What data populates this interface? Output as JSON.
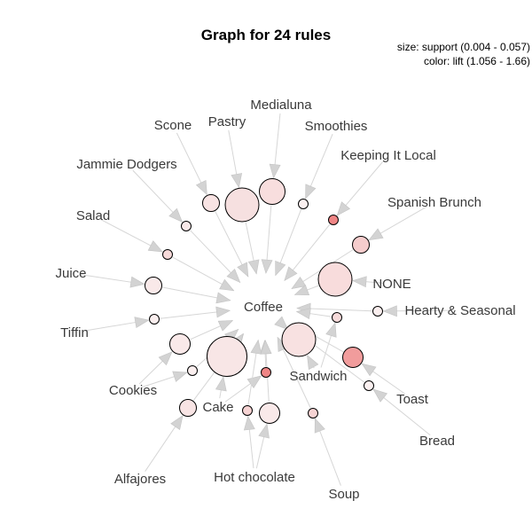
{
  "title": "Graph for 24 rules",
  "legend": {
    "size": "size: support (0.004 - 0.057)",
    "color": "color: lift (1.056 - 1.66)"
  },
  "items": [
    {
      "id": "medialuna",
      "label": "Medialuna"
    },
    {
      "id": "pastry",
      "label": "Pastry"
    },
    {
      "id": "scone",
      "label": "Scone"
    },
    {
      "id": "smoothies",
      "label": "Smoothies"
    },
    {
      "id": "keeping",
      "label": "Keeping It Local"
    },
    {
      "id": "jammie",
      "label": "Jammie Dodgers"
    },
    {
      "id": "spanish",
      "label": "Spanish Brunch"
    },
    {
      "id": "salad",
      "label": "Salad"
    },
    {
      "id": "juice",
      "label": "Juice"
    },
    {
      "id": "none",
      "label": "NONE"
    },
    {
      "id": "coffee",
      "label": "Coffee"
    },
    {
      "id": "hearty",
      "label": "Hearty & Seasonal"
    },
    {
      "id": "tiffin",
      "label": "Tiffin"
    },
    {
      "id": "cookies",
      "label": "Cookies"
    },
    {
      "id": "sandwich",
      "label": "Sandwich"
    },
    {
      "id": "toast",
      "label": "Toast"
    },
    {
      "id": "cake",
      "label": "Cake"
    },
    {
      "id": "bread",
      "label": "Bread"
    },
    {
      "id": "alfajores",
      "label": "Alfajores"
    },
    {
      "id": "hotchoc",
      "label": "Hot chocolate"
    },
    {
      "id": "soup",
      "label": "Soup"
    }
  ],
  "rules": [
    {
      "from": "medialuna",
      "size": "large",
      "fill": "#f8dede"
    },
    {
      "from": "pastry",
      "size": "xlarge",
      "fill": "#f6e0e0"
    },
    {
      "from": "scone",
      "size": "small",
      "fill": "#f8e3e3"
    },
    {
      "from": "smoothies",
      "size": "tiny",
      "fill": "#fbf0f0"
    },
    {
      "from": "keeping",
      "size": "tiny",
      "fill": "#ef8585"
    },
    {
      "from": "jammie",
      "size": "tiny",
      "fill": "#f8e8e8"
    },
    {
      "from": "spanish",
      "size": "small",
      "fill": "#f5cccc"
    },
    {
      "from": "salad",
      "size": "tiny",
      "fill": "#f6d9d9"
    },
    {
      "from": "juice",
      "size": "small",
      "fill": "#f9e9e9"
    },
    {
      "from": "none",
      "size": "xlarge",
      "fill": "#f8dcdc"
    },
    {
      "from": "hearty",
      "size": "tiny",
      "fill": "#faeeee"
    },
    {
      "from": "tiffin",
      "size": "tiny",
      "fill": "#faeeee"
    },
    {
      "from": "sandwich",
      "size": "tiny",
      "fill": "#f6dada"
    },
    {
      "from": "cookies",
      "size": "medium",
      "fill": "#f9e9e9"
    },
    {
      "from": "sandwich",
      "size": "xlarge",
      "fill": "#f8e1e1"
    },
    {
      "from": "toast",
      "size": "medium",
      "fill": "#f19c9c"
    },
    {
      "from": "cookies",
      "size": "tiny",
      "fill": "#fbefef"
    },
    {
      "from": "cake",
      "size": "xxlarge",
      "fill": "#f8e6e6"
    },
    {
      "from": "cake",
      "size": "tiny",
      "fill": "#ef8585"
    },
    {
      "from": "bread",
      "size": "tiny",
      "fill": "#fbf0f0"
    },
    {
      "from": "alfajores",
      "size": "small",
      "fill": "#f8e4e4"
    },
    {
      "from": "hotchoc",
      "size": "tiny",
      "fill": "#f6d3d3"
    },
    {
      "from": "hotchoc",
      "size": "medium",
      "fill": "#f9e9e9"
    },
    {
      "from": "soup",
      "size": "tiny",
      "fill": "#f6d3d3"
    }
  ]
}
